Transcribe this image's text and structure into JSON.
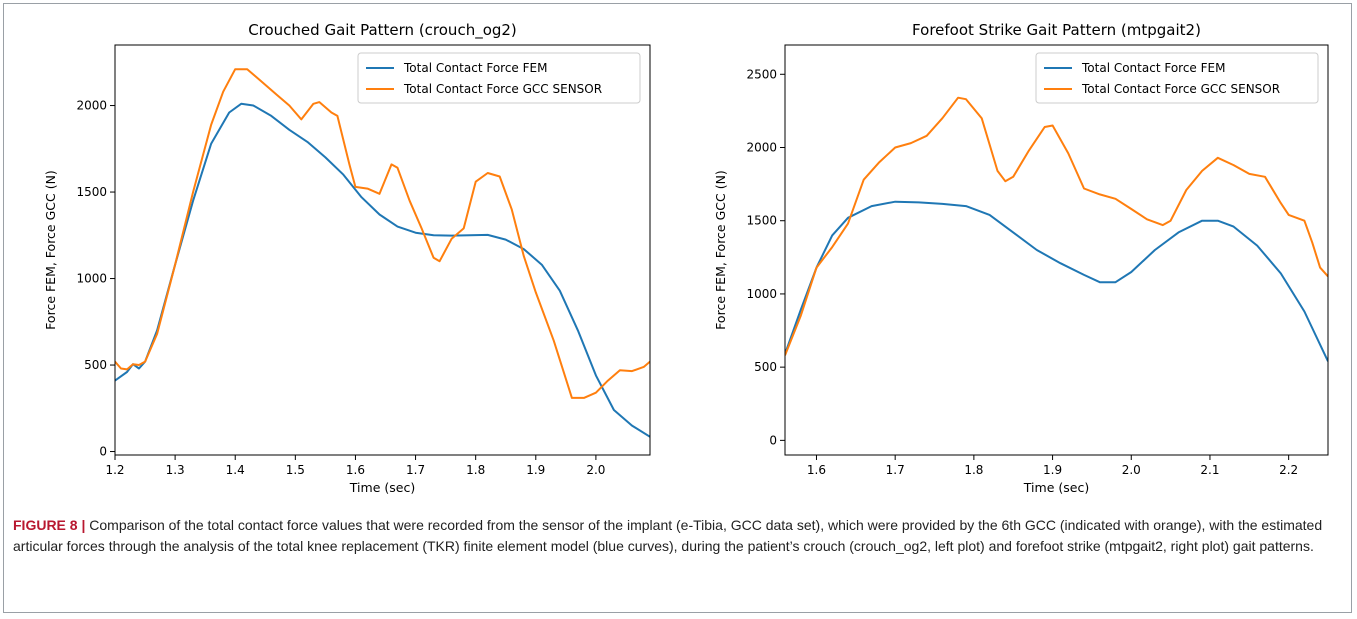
{
  "caption": {
    "label": "FIGURE 8 |",
    "text": " Comparison of the total contact force values that were recorded from the sensor of the implant (e-Tibia, GCC data set), which were provided by the 6th GCC (indicated with orange), with the estimated articular forces through the analysis of the total knee replacement (TKR) finite element model (blue curves), during the patient’s crouch (crouch_og2, left plot) and forefoot strike (mtpgait2, right plot) gait patterns."
  },
  "colors": {
    "fem": "#1f77b4",
    "gcc": "#ff7f0e"
  },
  "chart_data": [
    {
      "type": "line",
      "title": "Crouched Gait Pattern (crouch_og2)",
      "xlabel": "Time (sec)",
      "ylabel": "Force FEM, Force GCC (N)",
      "xlim": [
        1.2,
        2.09
      ],
      "ylim": [
        -20,
        2350
      ],
      "xticks": [
        1.2,
        1.3,
        1.4,
        1.5,
        1.6,
        1.7,
        1.8,
        1.9,
        2.0
      ],
      "yticks": [
        0,
        500,
        1000,
        1500,
        2000
      ],
      "legend_position": "top-right",
      "series": [
        {
          "name": "Total Contact Force FEM",
          "color": "#1f77b4",
          "points": [
            [
              1.2,
              410
            ],
            [
              1.22,
              460
            ],
            [
              1.23,
              505
            ],
            [
              1.24,
              480
            ],
            [
              1.25,
              520
            ],
            [
              1.27,
              700
            ],
            [
              1.3,
              1080
            ],
            [
              1.33,
              1450
            ],
            [
              1.36,
              1780
            ],
            [
              1.39,
              1960
            ],
            [
              1.41,
              2010
            ],
            [
              1.43,
              2000
            ],
            [
              1.46,
              1940
            ],
            [
              1.49,
              1860
            ],
            [
              1.52,
              1790
            ],
            [
              1.55,
              1700
            ],
            [
              1.58,
              1600
            ],
            [
              1.61,
              1470
            ],
            [
              1.64,
              1370
            ],
            [
              1.67,
              1300
            ],
            [
              1.7,
              1265
            ],
            [
              1.73,
              1250
            ],
            [
              1.76,
              1248
            ],
            [
              1.79,
              1250
            ],
            [
              1.82,
              1252
            ],
            [
              1.85,
              1225
            ],
            [
              1.88,
              1170
            ],
            [
              1.91,
              1080
            ],
            [
              1.94,
              930
            ],
            [
              1.97,
              700
            ],
            [
              2.0,
              440
            ],
            [
              2.03,
              240
            ],
            [
              2.06,
              150
            ],
            [
              2.09,
              85
            ]
          ]
        },
        {
          "name": "Total Contact Force GCC SENSOR",
          "color": "#ff7f0e",
          "points": [
            [
              1.2,
              520
            ],
            [
              1.21,
              480
            ],
            [
              1.22,
              475
            ],
            [
              1.23,
              505
            ],
            [
              1.24,
              500
            ],
            [
              1.25,
              520
            ],
            [
              1.27,
              680
            ],
            [
              1.3,
              1080
            ],
            [
              1.33,
              1500
            ],
            [
              1.36,
              1890
            ],
            [
              1.38,
              2080
            ],
            [
              1.4,
              2210
            ],
            [
              1.42,
              2210
            ],
            [
              1.44,
              2150
            ],
            [
              1.47,
              2060
            ],
            [
              1.49,
              2000
            ],
            [
              1.51,
              1920
            ],
            [
              1.53,
              2010
            ],
            [
              1.54,
              2020
            ],
            [
              1.56,
              1960
            ],
            [
              1.57,
              1940
            ],
            [
              1.59,
              1660
            ],
            [
              1.6,
              1530
            ],
            [
              1.62,
              1520
            ],
            [
              1.64,
              1490
            ],
            [
              1.66,
              1660
            ],
            [
              1.67,
              1640
            ],
            [
              1.69,
              1450
            ],
            [
              1.71,
              1290
            ],
            [
              1.73,
              1120
            ],
            [
              1.74,
              1100
            ],
            [
              1.76,
              1230
            ],
            [
              1.78,
              1290
            ],
            [
              1.8,
              1560
            ],
            [
              1.82,
              1610
            ],
            [
              1.84,
              1590
            ],
            [
              1.86,
              1400
            ],
            [
              1.88,
              1130
            ],
            [
              1.9,
              920
            ],
            [
              1.93,
              640
            ],
            [
              1.96,
              310
            ],
            [
              1.98,
              310
            ],
            [
              2.0,
              340
            ],
            [
              2.02,
              410
            ],
            [
              2.04,
              470
            ],
            [
              2.06,
              465
            ],
            [
              2.08,
              490
            ],
            [
              2.09,
              520
            ]
          ]
        }
      ]
    },
    {
      "type": "line",
      "title": "Forefoot Strike Gait Pattern (mtpgait2)",
      "xlabel": "Time (sec)",
      "ylabel": "Force FEM, Force GCC (N)",
      "xlim": [
        1.56,
        2.25
      ],
      "ylim": [
        -100,
        2700
      ],
      "xticks": [
        1.6,
        1.7,
        1.8,
        1.9,
        2.0,
        2.1,
        2.2
      ],
      "yticks": [
        0,
        500,
        1000,
        1500,
        2000,
        2500
      ],
      "legend_position": "top-right",
      "series": [
        {
          "name": "Total Contact Force FEM",
          "color": "#1f77b4",
          "points": [
            [
              1.56,
              590
            ],
            [
              1.58,
              890
            ],
            [
              1.6,
              1180
            ],
            [
              1.62,
              1400
            ],
            [
              1.64,
              1520
            ],
            [
              1.67,
              1600
            ],
            [
              1.7,
              1630
            ],
            [
              1.73,
              1625
            ],
            [
              1.76,
              1615
            ],
            [
              1.79,
              1600
            ],
            [
              1.82,
              1540
            ],
            [
              1.85,
              1420
            ],
            [
              1.88,
              1300
            ],
            [
              1.91,
              1210
            ],
            [
              1.94,
              1130
            ],
            [
              1.96,
              1080
            ],
            [
              1.98,
              1080
            ],
            [
              2.0,
              1150
            ],
            [
              2.03,
              1300
            ],
            [
              2.06,
              1420
            ],
            [
              2.09,
              1500
            ],
            [
              2.11,
              1500
            ],
            [
              2.13,
              1460
            ],
            [
              2.16,
              1330
            ],
            [
              2.19,
              1140
            ],
            [
              2.22,
              880
            ],
            [
              2.25,
              540
            ]
          ]
        },
        {
          "name": "Total Contact Force GCC SENSOR",
          "color": "#ff7f0e",
          "points": [
            [
              1.56,
              580
            ],
            [
              1.58,
              850
            ],
            [
              1.6,
              1180
            ],
            [
              1.62,
              1320
            ],
            [
              1.64,
              1480
            ],
            [
              1.66,
              1780
            ],
            [
              1.68,
              1900
            ],
            [
              1.7,
              2000
            ],
            [
              1.72,
              2030
            ],
            [
              1.74,
              2080
            ],
            [
              1.76,
              2200
            ],
            [
              1.78,
              2340
            ],
            [
              1.79,
              2330
            ],
            [
              1.81,
              2200
            ],
            [
              1.83,
              1840
            ],
            [
              1.84,
              1770
            ],
            [
              1.85,
              1800
            ],
            [
              1.87,
              1980
            ],
            [
              1.89,
              2140
            ],
            [
              1.9,
              2150
            ],
            [
              1.92,
              1960
            ],
            [
              1.94,
              1720
            ],
            [
              1.96,
              1680
            ],
            [
              1.98,
              1650
            ],
            [
              2.0,
              1580
            ],
            [
              2.02,
              1510
            ],
            [
              2.04,
              1470
            ],
            [
              2.05,
              1500
            ],
            [
              2.07,
              1710
            ],
            [
              2.09,
              1840
            ],
            [
              2.11,
              1930
            ],
            [
              2.13,
              1880
            ],
            [
              2.15,
              1820
            ],
            [
              2.17,
              1800
            ],
            [
              2.19,
              1620
            ],
            [
              2.2,
              1540
            ],
            [
              2.22,
              1500
            ],
            [
              2.23,
              1350
            ],
            [
              2.24,
              1180
            ],
            [
              2.25,
              1120
            ]
          ]
        }
      ]
    }
  ]
}
